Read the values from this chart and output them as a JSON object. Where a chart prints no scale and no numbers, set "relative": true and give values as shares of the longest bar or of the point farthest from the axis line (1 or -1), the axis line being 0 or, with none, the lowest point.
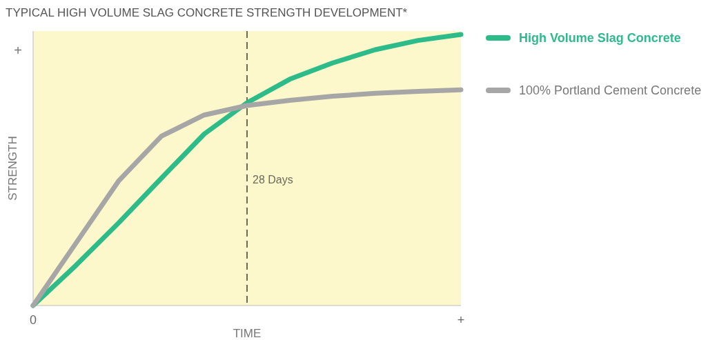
{
  "chart_data": {
    "type": "line",
    "title": "TYPICAL HIGH VOLUME SLAG CONCRETE STRENGTH DEVELOPMENT*",
    "xlabel": "TIME",
    "ylabel": "STRENGTH",
    "relative": true,
    "categories": [
      "0",
      null,
      null,
      null,
      null,
      null,
      null,
      null,
      null,
      null,
      "+"
    ],
    "annotations": [
      "+",
      "28 Days"
    ],
    "legend": "right",
    "line_style": "solid",
    "series": [
      {
        "name": "High Volume Slag Concrete",
        "color": "#2dbb8a",
        "values": [
          0,
          0.148,
          0.305,
          0.47,
          0.633,
          0.748,
          0.835,
          0.895,
          0.944,
          0.978,
          1
        ]
      },
      {
        "name": "100% Portland Cement Concrete",
        "color": "#a6a6a6",
        "values": [
          0,
          0.23,
          0.46,
          0.625,
          0.703,
          0.738,
          0.757,
          0.772,
          0.783,
          0.79,
          0.796
        ]
      }
    ]
  }
}
